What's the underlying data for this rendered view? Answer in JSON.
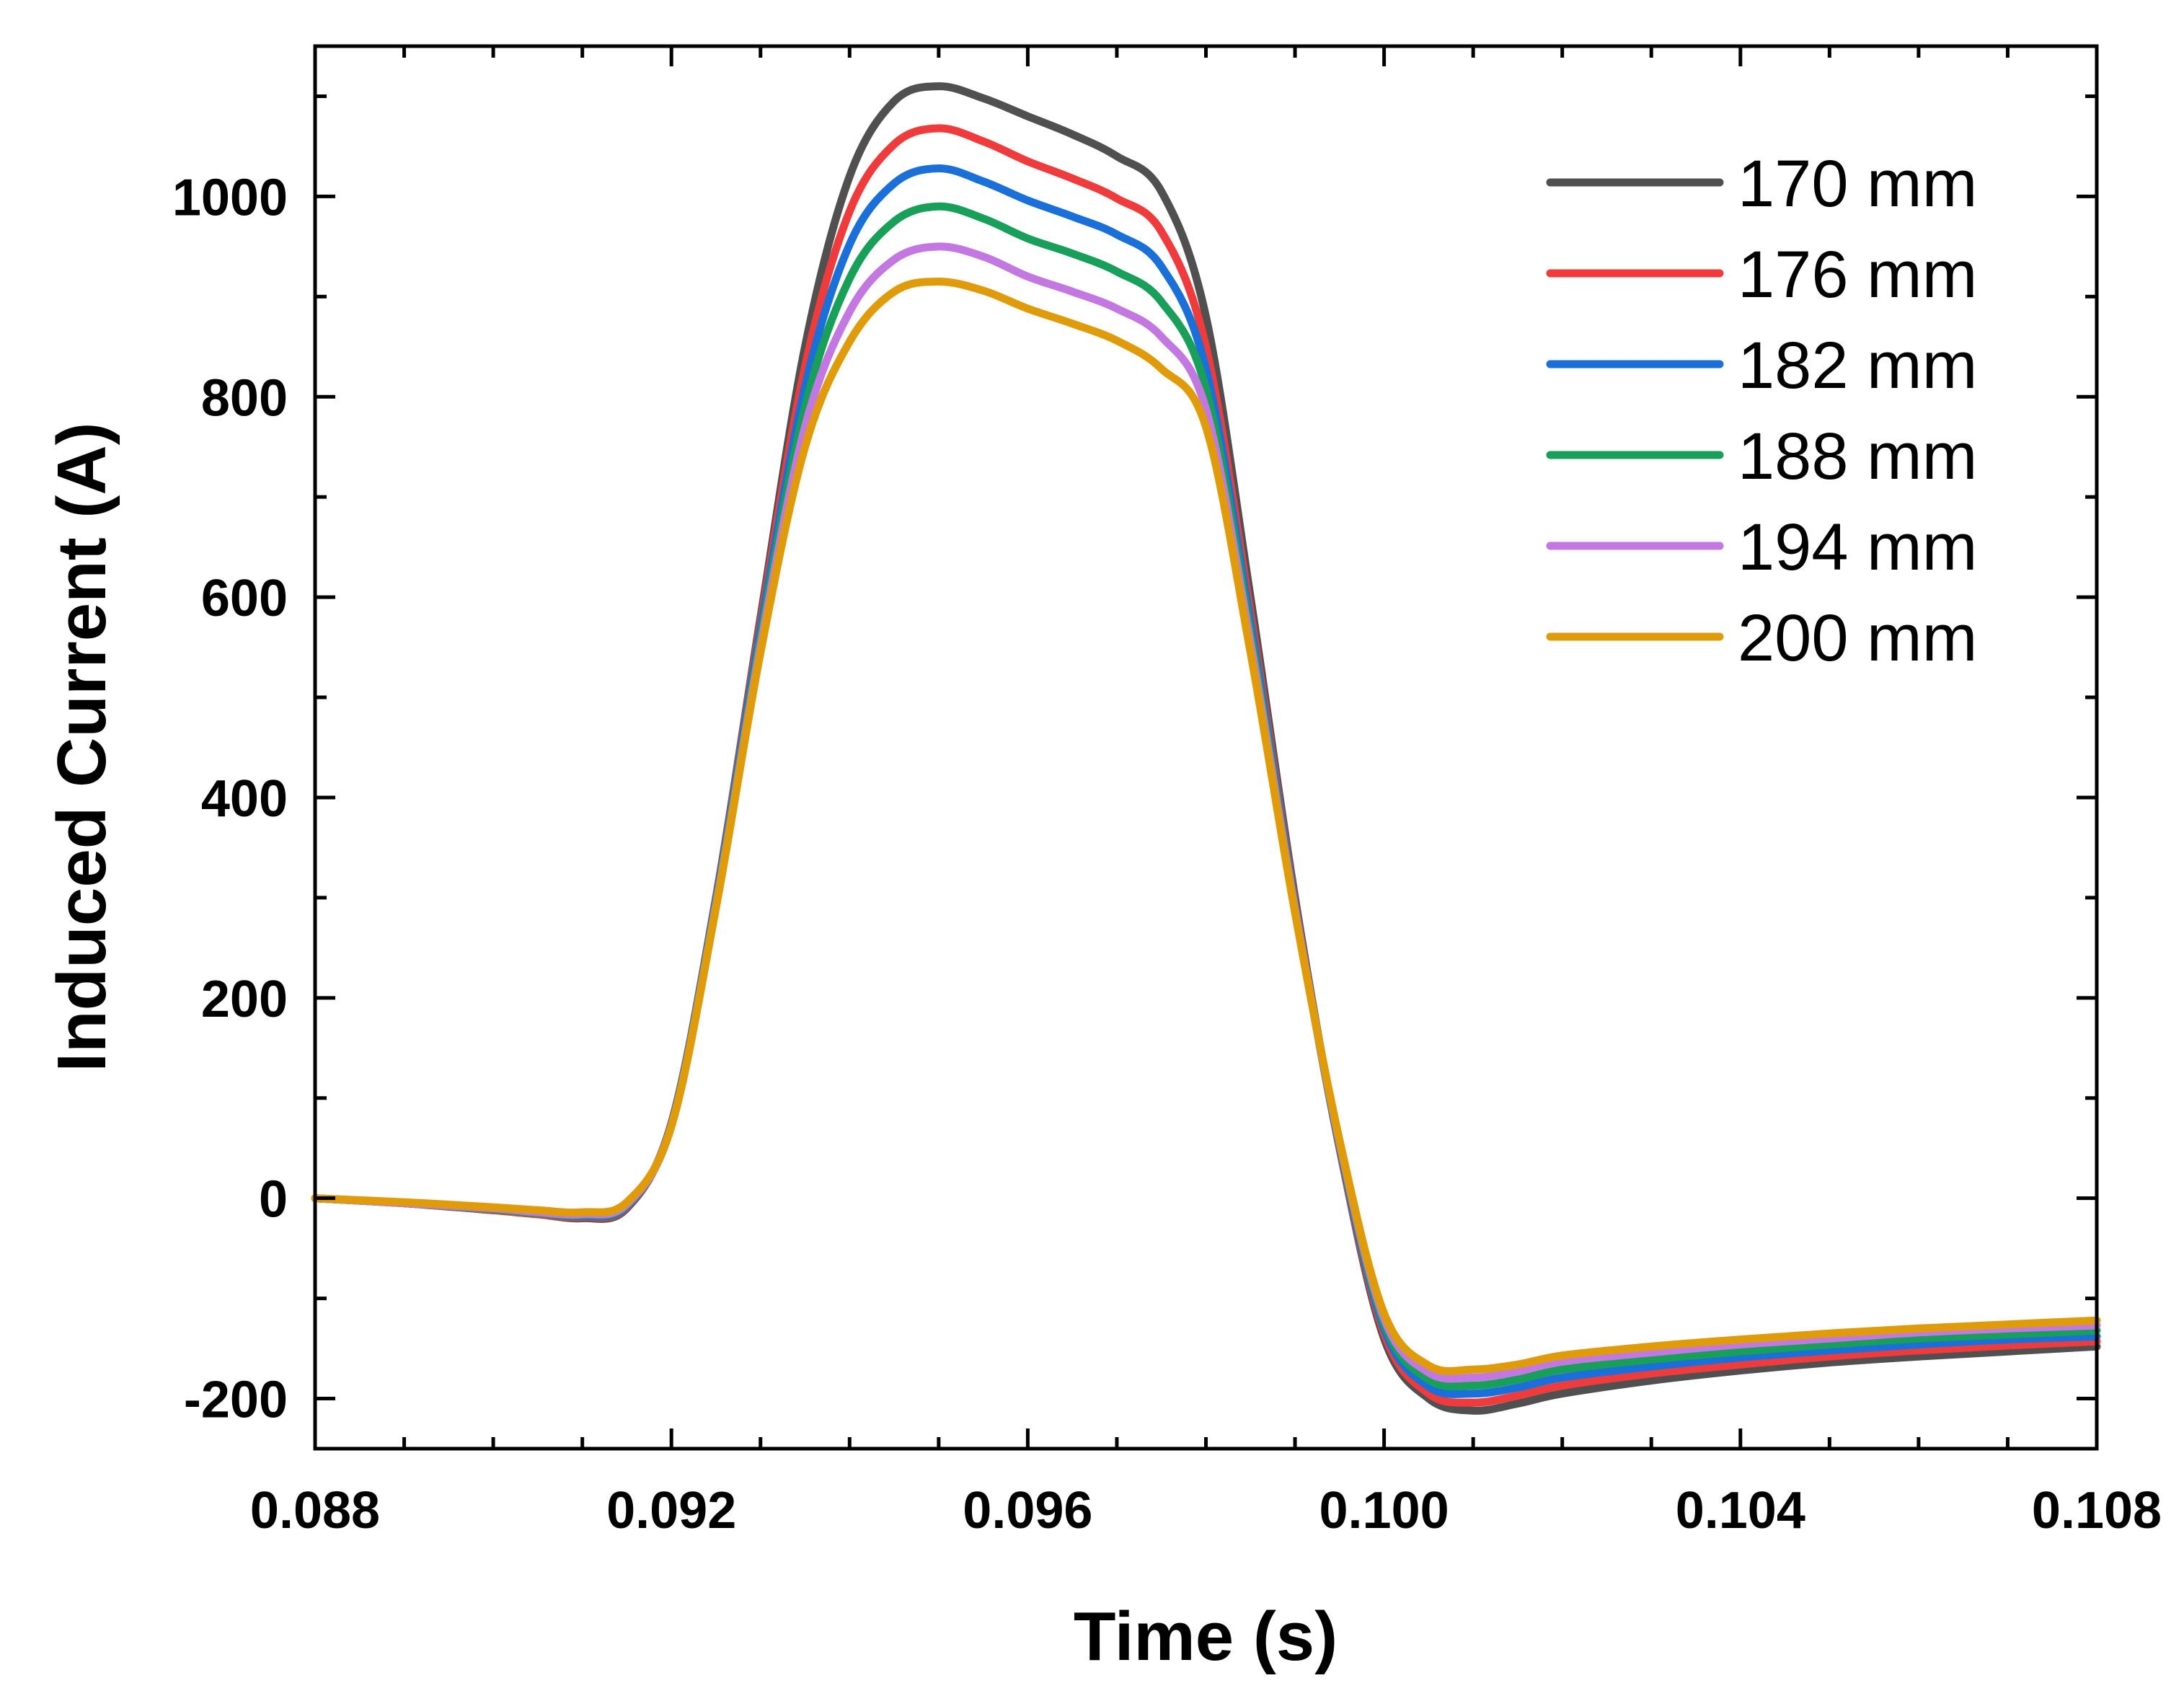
{
  "chart_data": {
    "type": "line",
    "title": "",
    "xlabel": "Time (s)",
    "ylabel": "Induced Current (A)",
    "xlim": [
      0.088,
      0.108
    ],
    "ylim": [
      -250,
      1150
    ],
    "x_ticks": [
      0.088,
      0.092,
      0.096,
      0.1,
      0.104,
      0.108
    ],
    "x_tick_labels": [
      "0.088",
      "0.092",
      "0.096",
      "0.100",
      "0.104",
      "0.108"
    ],
    "y_ticks": [
      -200,
      0,
      200,
      400,
      600,
      800,
      1000
    ],
    "y_tick_labels": [
      "-200",
      "0",
      "200",
      "400",
      "600",
      "800",
      "1000"
    ],
    "grid": false,
    "legend_position": "top-right",
    "x": [
      0.088,
      0.089,
      0.09,
      0.0905,
      0.091,
      0.0915,
      0.092,
      0.0925,
      0.093,
      0.0935,
      0.094,
      0.0945,
      0.095,
      0.0955,
      0.096,
      0.0965,
      0.097,
      0.0975,
      0.098,
      0.0985,
      0.099,
      0.0995,
      0.1,
      0.1005,
      0.101,
      0.1015,
      0.102,
      0.103,
      0.104,
      0.105,
      0.106,
      0.107,
      0.108
    ],
    "series": [
      {
        "name": "170 mm",
        "color": "#505050",
        "values": [
          0,
          -5,
          -12,
          -16,
          -20,
          -10,
          75,
          300,
          580,
          850,
          1020,
          1095,
          1110,
          1098,
          1080,
          1062,
          1040,
          1005,
          880,
          600,
          300,
          50,
          -140,
          -200,
          -212,
          -205,
          -195,
          -182,
          -172,
          -164,
          -158,
          -153,
          -148
        ]
      },
      {
        "name": "176 mm",
        "color": "#ef3b3b",
        "values": [
          0,
          -5,
          -12,
          -16,
          -19,
          -9,
          75,
          300,
          575,
          830,
          985,
          1052,
          1068,
          1055,
          1035,
          1018,
          998,
          965,
          850,
          585,
          295,
          50,
          -135,
          -195,
          -204,
          -197,
          -187,
          -175,
          -166,
          -158,
          -152,
          -147,
          -143
        ]
      },
      {
        "name": "182 mm",
        "color": "#1a6fd9",
        "values": [
          0,
          -5,
          -11,
          -15,
          -18,
          -8,
          74,
          298,
          568,
          810,
          952,
          1013,
          1028,
          1015,
          996,
          980,
          962,
          930,
          828,
          575,
          292,
          52,
          -130,
          -188,
          -195,
          -189,
          -179,
          -168,
          -159,
          -152,
          -146,
          -141,
          -138
        ]
      },
      {
        "name": "188 mm",
        "color": "#18a05a",
        "values": [
          0,
          -5,
          -11,
          -15,
          -17,
          -7,
          73,
          295,
          560,
          790,
          918,
          975,
          990,
          978,
          958,
          943,
          925,
          895,
          808,
          565,
          290,
          54,
          -125,
          -181,
          -187,
          -181,
          -171,
          -161,
          -153,
          -146,
          -140,
          -136,
          -132
        ]
      },
      {
        "name": "194 mm",
        "color": "#c377e0",
        "values": [
          0,
          -5,
          -10,
          -14,
          -16,
          -6,
          72,
          292,
          552,
          770,
          885,
          937,
          950,
          940,
          920,
          905,
          888,
          860,
          788,
          555,
          288,
          56,
          -120,
          -174,
          -179,
          -173,
          -163,
          -154,
          -146,
          -140,
          -134,
          -130,
          -127
        ]
      },
      {
        "name": "200 mm",
        "color": "#e09b0b",
        "values": [
          0,
          -4,
          -9,
          -12,
          -14,
          -4,
          72,
          290,
          545,
          750,
          855,
          905,
          915,
          906,
          888,
          873,
          856,
          828,
          770,
          545,
          285,
          58,
          -115,
          -167,
          -171,
          -166,
          -157,
          -148,
          -141,
          -135,
          -130,
          -126,
          -122
        ]
      }
    ]
  }
}
